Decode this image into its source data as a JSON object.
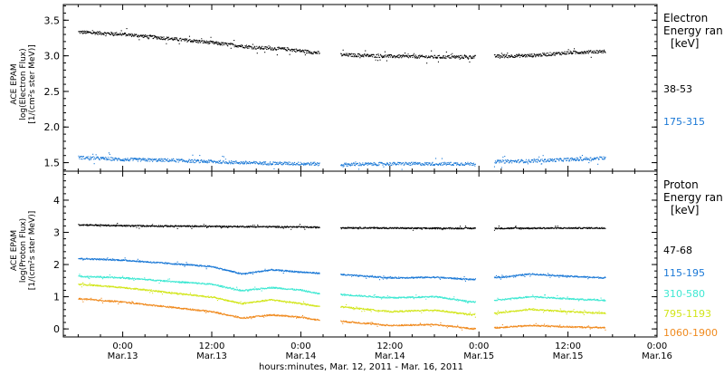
{
  "chart_data": [
    {
      "type": "scatter",
      "panel": "electron",
      "ylabel_lines": [
        "ACE EPAM",
        "log(Electron Flux)",
        "[1/(cm²s ster MeV)]"
      ],
      "ylim": [
        1.38,
        3.72
      ],
      "yticks": [
        1.5,
        2.0,
        2.5,
        3.0,
        3.5
      ],
      "ytick_labels": [
        "1.5",
        "2.0",
        "2.5",
        "3.0",
        "3.5"
      ],
      "legend_title": [
        "Electron",
        "Energy ran"
      ],
      "legend_unit": "[keV]",
      "gaps_hours": [
        [
          26.5,
          29.3
        ],
        [
          47.5,
          50.0
        ]
      ],
      "series": [
        {
          "name": "38-53",
          "color": "#000000",
          "points": [
            [
              -6,
              3.34
            ],
            [
              0,
              3.31
            ],
            [
              6,
              3.25
            ],
            [
              12,
              3.19
            ],
            [
              18,
              3.12
            ],
            [
              22,
              3.1
            ],
            [
              26,
              3.05
            ],
            [
              29.5,
              3.02
            ],
            [
              36,
              3.0
            ],
            [
              42,
              2.99
            ],
            [
              47,
              2.99
            ],
            [
              50,
              3.0
            ],
            [
              55,
              3.01
            ],
            [
              60,
              3.05
            ],
            [
              65,
              3.07
            ]
          ]
        },
        {
          "name": "175-315",
          "color": "#1a78d6",
          "points": [
            [
              -6,
              1.58
            ],
            [
              0,
              1.55
            ],
            [
              6,
              1.54
            ],
            [
              12,
              1.52
            ],
            [
              18,
              1.5
            ],
            [
              26,
              1.49
            ],
            [
              29.5,
              1.48
            ],
            [
              36,
              1.49
            ],
            [
              47,
              1.49
            ],
            [
              50,
              1.52
            ],
            [
              55,
              1.53
            ],
            [
              60,
              1.55
            ],
            [
              65,
              1.57
            ]
          ]
        }
      ]
    },
    {
      "type": "scatter",
      "panel": "proton",
      "ylabel_lines": [
        "ACE EPAM",
        "log(Proton Flux)",
        "[1/(cm²s ster MeV)]"
      ],
      "ylim": [
        -0.25,
        4.9
      ],
      "yticks": [
        0,
        1,
        2,
        3,
        4
      ],
      "ytick_labels": [
        "0",
        "1",
        "2",
        "3",
        "4"
      ],
      "legend_title": [
        "Proton",
        "Energy ran"
      ],
      "legend_unit": "[keV]",
      "gaps_hours": [
        [
          26.5,
          29.3
        ],
        [
          47.5,
          50.0
        ]
      ],
      "series": [
        {
          "name": "47-68",
          "color": "#000000",
          "points": [
            [
              -6,
              3.25
            ],
            [
              0,
              3.22
            ],
            [
              12,
              3.2
            ],
            [
              24,
              3.18
            ],
            [
              26,
              3.17
            ],
            [
              29.5,
              3.16
            ],
            [
              40,
              3.14
            ],
            [
              47,
              3.14
            ],
            [
              50,
              3.14
            ],
            [
              65,
              3.15
            ]
          ]
        },
        {
          "name": "115-195",
          "color": "#1a78d6",
          "points": [
            [
              -6,
              2.2
            ],
            [
              0,
              2.15
            ],
            [
              6,
              2.05
            ],
            [
              12,
              1.95
            ],
            [
              16,
              1.72
            ],
            [
              20,
              1.85
            ],
            [
              24,
              1.78
            ],
            [
              26,
              1.75
            ],
            [
              29.5,
              1.7
            ],
            [
              36,
              1.6
            ],
            [
              42,
              1.62
            ],
            [
              47,
              1.55
            ],
            [
              50,
              1.6
            ],
            [
              55,
              1.72
            ],
            [
              60,
              1.65
            ],
            [
              65,
              1.6
            ]
          ]
        },
        {
          "name": "310-580",
          "color": "#3de8d2",
          "points": [
            [
              -6,
              1.65
            ],
            [
              0,
              1.6
            ],
            [
              6,
              1.5
            ],
            [
              12,
              1.4
            ],
            [
              16,
              1.2
            ],
            [
              20,
              1.3
            ],
            [
              24,
              1.22
            ],
            [
              26,
              1.12
            ],
            [
              29.5,
              1.08
            ],
            [
              36,
              0.98
            ],
            [
              42,
              1.02
            ],
            [
              47,
              0.85
            ],
            [
              50,
              0.9
            ],
            [
              55,
              1.02
            ],
            [
              60,
              0.95
            ],
            [
              65,
              0.9
            ]
          ]
        },
        {
          "name": "795-1193",
          "color": "#d2e61a",
          "points": [
            [
              -6,
              1.4
            ],
            [
              0,
              1.3
            ],
            [
              6,
              1.15
            ],
            [
              12,
              1.0
            ],
            [
              16,
              0.8
            ],
            [
              20,
              0.92
            ],
            [
              24,
              0.8
            ],
            [
              26,
              0.72
            ],
            [
              29.5,
              0.7
            ],
            [
              36,
              0.55
            ],
            [
              42,
              0.6
            ],
            [
              47,
              0.45
            ],
            [
              50,
              0.5
            ],
            [
              55,
              0.62
            ],
            [
              60,
              0.55
            ],
            [
              65,
              0.5
            ]
          ]
        },
        {
          "name": "1060-1900",
          "color": "#f08a1e",
          "points": [
            [
              -6,
              0.95
            ],
            [
              0,
              0.85
            ],
            [
              6,
              0.7
            ],
            [
              12,
              0.55
            ],
            [
              16,
              0.35
            ],
            [
              20,
              0.45
            ],
            [
              24,
              0.38
            ],
            [
              26,
              0.3
            ],
            [
              29.5,
              0.25
            ],
            [
              36,
              0.12
            ],
            [
              42,
              0.15
            ],
            [
              47,
              0.02
            ],
            [
              50,
              0.05
            ],
            [
              55,
              0.12
            ],
            [
              60,
              0.08
            ],
            [
              65,
              0.05
            ]
          ]
        }
      ]
    }
  ],
  "x_axis": {
    "range_hours": [
      -8,
      72
    ],
    "ticks": [
      {
        "hour": 0,
        "time": "0:00",
        "date": "Mar.13"
      },
      {
        "hour": 12,
        "time": "12:00",
        "date": "Mar.13"
      },
      {
        "hour": 24,
        "time": "0:00",
        "date": "Mar.14"
      },
      {
        "hour": 36,
        "time": "12:00",
        "date": "Mar.14"
      },
      {
        "hour": 48,
        "time": "0:00",
        "date": "Mar.15"
      },
      {
        "hour": 60,
        "time": "12:00",
        "date": "Mar.15"
      },
      {
        "hour": 72,
        "time": "0:00",
        "date": "Mar.16"
      }
    ],
    "label": "hours:minutes, Mar. 12, 2011 - Mar. 16, 2011"
  }
}
